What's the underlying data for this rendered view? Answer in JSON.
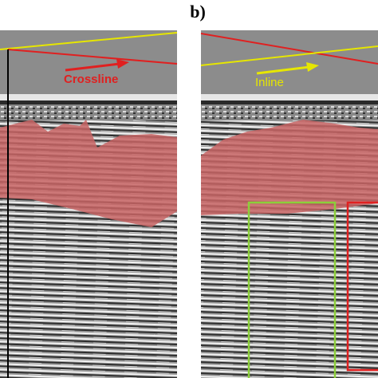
{
  "panel_label": "b)",
  "left_panel": {
    "arrow_label": "Crossline"
  },
  "right_panel": {
    "arrow_label": "Inline"
  }
}
